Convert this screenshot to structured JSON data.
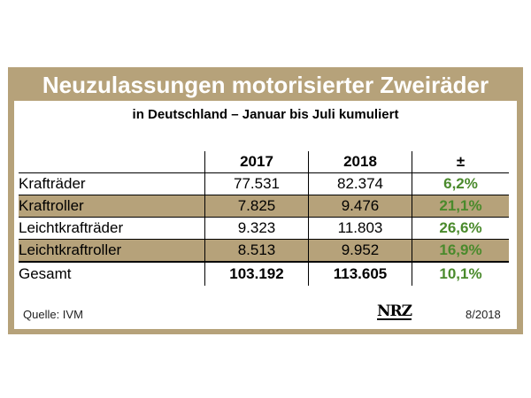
{
  "chart_data": {
    "type": "table",
    "title": "Neuzulassungen motorisierter Zweiräder",
    "subtitle": "in Deutschland – Januar bis Juli kumuliert",
    "columns": [
      "",
      "2017",
      "2018",
      "±"
    ],
    "rows": [
      {
        "label": "Krafträder",
        "y2017": "77.531",
        "y2018": "82.374",
        "change": "6,2%"
      },
      {
        "label": "Kraftroller",
        "y2017": "7.825",
        "y2018": "9.476",
        "change": "21,1%"
      },
      {
        "label": "Leichtkrafträder",
        "y2017": "9.323",
        "y2018": "11.803",
        "change": "26,6%"
      },
      {
        "label": "Leichtkraftroller",
        "y2017": "8.513",
        "y2018": "9.952",
        "change": "16,9%"
      }
    ],
    "total": {
      "label": "Gesamt",
      "y2017": "103.192",
      "y2018": "113.605",
      "change": "10,1%"
    },
    "source": "Quelle: IVM",
    "logo": "NRZ",
    "date": "8/2018",
    "colors": {
      "frame": "#b6a27a",
      "positive": "#4a8a2c"
    }
  }
}
